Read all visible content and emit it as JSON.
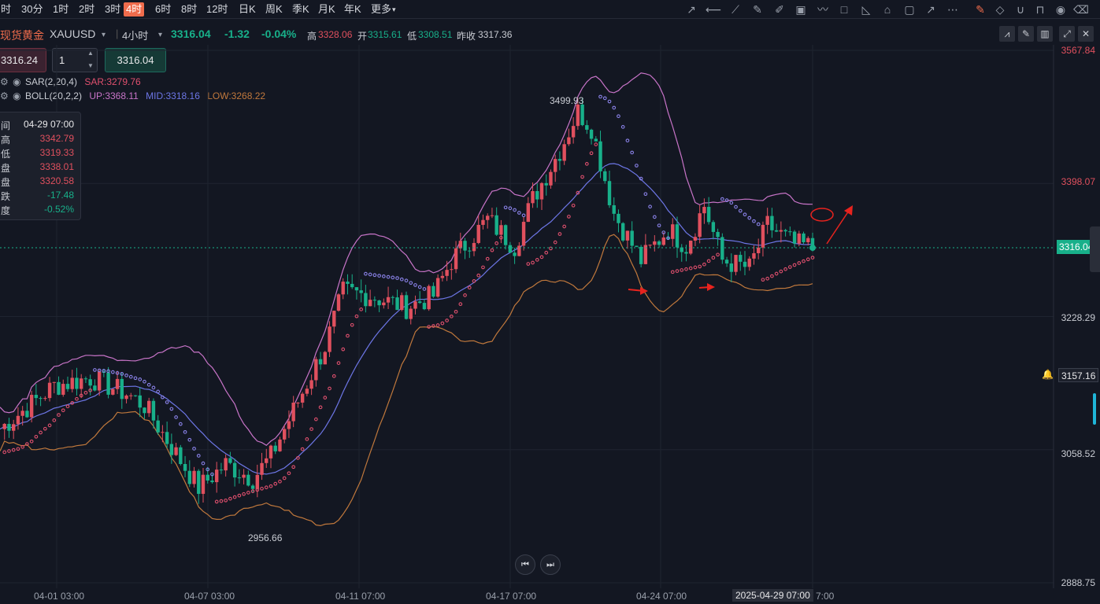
{
  "toolbar": {
    "timeframes": [
      "时",
      "30分",
      "1时",
      "2时",
      "3时",
      "4时",
      "6时",
      "8时",
      "12时",
      "日K",
      "周K",
      "季K",
      "月K",
      "年K",
      "更多"
    ],
    "active_timeframe": "4时",
    "more_caret": "▾",
    "accent_color": "#f06c4c"
  },
  "symbol": {
    "name": "现货黄金",
    "code": "XAUUSD",
    "period": "4小时",
    "price": "3316.04",
    "change": "-1.32",
    "change_pct": "-0.04%",
    "high_label": "高",
    "high": "3328.06",
    "open_label": "开",
    "open": "3315.61",
    "low_label": "低",
    "low": "3308.51",
    "prev_close_label": "昨收",
    "prev_close": "3317.36"
  },
  "order": {
    "sell_price": "3316.24",
    "quantity": "1",
    "buy_price": "3316.04"
  },
  "indicators": {
    "sar": {
      "name": "SAR(2,20,4)",
      "value_label": "SAR:3279.76"
    },
    "boll": {
      "name": "BOLL(20,2,2)",
      "up": "UP:3368.11",
      "mid": "MID:3318.16",
      "low": "LOW:3268.22"
    }
  },
  "ohlc_panel": {
    "time_label": "间",
    "time": "04-29 07:00",
    "rows": [
      {
        "k": "高",
        "v": "3342.79"
      },
      {
        "k": "低",
        "v": "3319.33"
      },
      {
        "k": "盘",
        "v": "3338.01"
      },
      {
        "k": "盘",
        "v": "3320.58"
      },
      {
        "k": "跌",
        "v": "-17.48"
      },
      {
        "k": "度",
        "v": "-0.52%"
      }
    ]
  },
  "chart_data": {
    "type": "candlestick",
    "y_axis_ticks": [
      3567.84,
      3398.07,
      3228.29,
      3058.52,
      2888.75
    ],
    "ylim": [
      2888.75,
      3567.84
    ],
    "current_price": 3316.04,
    "alert_price": 3157.16,
    "x_tick_labels": [
      "04-01 03:00",
      "04-07 03:00",
      "04-11 07:00",
      "04-17 07:00",
      "04-24 07:00",
      "2025-04-29 07:00"
    ],
    "x_tick_last_suffix": "7:00",
    "max_label": "3499.93",
    "min_label": "2956.66",
    "colors": {
      "up": "#e0505e",
      "down": "#18b08a",
      "boll_up": "#c874c8",
      "boll_mid": "#6d76e6",
      "boll_low": "#c0783c",
      "sar": "#8a82e8",
      "annotation": "#e8231e"
    }
  },
  "nav": {
    "prev": "⏮",
    "next": "⏭"
  }
}
